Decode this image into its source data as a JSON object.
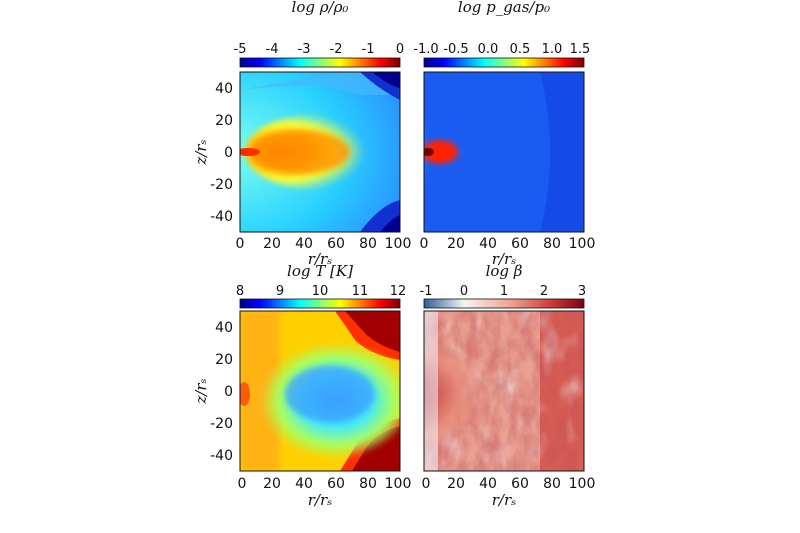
{
  "chart_data": [
    {
      "type": "heatmap",
      "colorbar": {
        "label": "log ρ/ρ₀",
        "colormap": "jet",
        "range": [
          -5,
          0
        ],
        "ticks": [
          "-5",
          "-4",
          "-3",
          "-2",
          "-1",
          "0"
        ]
      },
      "xlabel": "r/rₛ",
      "ylabel": "z/rₛ",
      "xlim": [
        0,
        100
      ],
      "ylim": [
        -50,
        50
      ],
      "xticks": [
        "0",
        "20",
        "40",
        "60",
        "80",
        "100"
      ],
      "yticks": [
        "40",
        "20",
        "0",
        "-20",
        "-40"
      ]
    },
    {
      "type": "heatmap",
      "colorbar": {
        "label": "log p_gas/p₀",
        "colormap": "jet",
        "range": [
          -1.0,
          1.5
        ],
        "ticks": [
          "-1.0",
          "-0.5",
          "0.0",
          "0.5",
          "1.0",
          "1.5"
        ]
      },
      "xlabel": "r/rₛ",
      "xlim": [
        0,
        100
      ],
      "ylim": [
        -50,
        50
      ],
      "xticks": [
        "0",
        "20",
        "40",
        "60",
        "80",
        "100"
      ]
    },
    {
      "type": "heatmap",
      "colorbar": {
        "label": "log T [K]",
        "colormap": "jet",
        "range": [
          8,
          12
        ],
        "ticks": [
          "8",
          "9",
          "10",
          "11",
          "12"
        ]
      },
      "xlabel": "r/rₛ",
      "ylabel": "z/rₛ",
      "xlim": [
        0,
        100
      ],
      "ylim": [
        -50,
        50
      ],
      "xticks": [
        "0",
        "20",
        "40",
        "60",
        "80",
        "100"
      ],
      "yticks": [
        "40",
        "20",
        "0",
        "-20",
        "-40"
      ]
    },
    {
      "type": "heatmap",
      "colorbar": {
        "label": "log β",
        "colormap": "diverging blue-white-red",
        "range": [
          -1,
          3
        ],
        "ticks": [
          "-1",
          "0",
          "1",
          "2",
          "3"
        ]
      },
      "xlabel": "r/rₛ",
      "xlim": [
        0,
        100
      ],
      "ylim": [
        -50,
        50
      ],
      "xticks": [
        "0",
        "20",
        "40",
        "60",
        "80",
        "100"
      ]
    }
  ]
}
